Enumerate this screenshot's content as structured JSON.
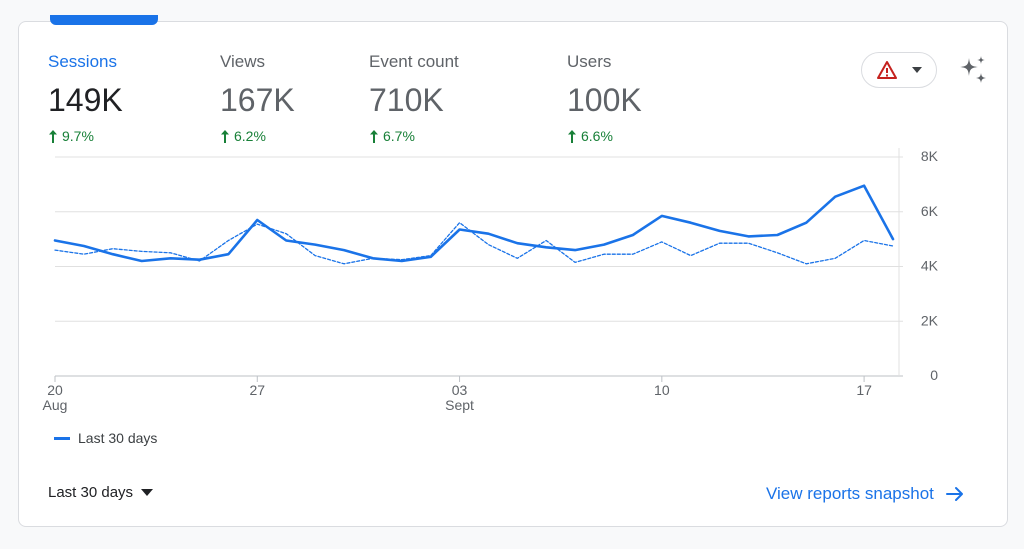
{
  "metrics": [
    {
      "label": "Sessions",
      "value": "149K",
      "change": "9.7%",
      "active": true
    },
    {
      "label": "Views",
      "value": "167K",
      "change": "6.2%",
      "active": false
    },
    {
      "label": "Event count",
      "value": "710K",
      "change": "6.7%",
      "active": false
    },
    {
      "label": "Users",
      "value": "100K",
      "change": "6.6%",
      "active": false
    }
  ],
  "alert_button": {
    "icon": "warning-triangle-icon",
    "dropdown_icon": "caret-down-icon"
  },
  "insights_icon": "sparkle-icon",
  "legend": {
    "label": "Last 30 days"
  },
  "date_range": {
    "label": "Last 30 days"
  },
  "view_reports": {
    "label": "View reports snapshot"
  },
  "colors": {
    "accent": "#1a73e8",
    "positive": "#188038",
    "warning": "#c5221f"
  },
  "chart_data": {
    "type": "line",
    "x": [
      "Aug 20",
      "Aug 21",
      "Aug 22",
      "Aug 23",
      "Aug 24",
      "Aug 25",
      "Aug 26",
      "Aug 27",
      "Aug 28",
      "Aug 29",
      "Aug 30",
      "Aug 31",
      "Sept 01",
      "Sept 02",
      "Sept 03",
      "Sept 04",
      "Sept 05",
      "Sept 06",
      "Sept 07",
      "Sept 08",
      "Sept 09",
      "Sept 10",
      "Sept 11",
      "Sept 12",
      "Sept 13",
      "Sept 14",
      "Sept 15",
      "Sept 16",
      "Sept 17",
      "Sept 18"
    ],
    "x_ticks": [
      {
        "index": 0,
        "label": "20",
        "sublabel": "Aug"
      },
      {
        "index": 7,
        "label": "27",
        "sublabel": ""
      },
      {
        "index": 14,
        "label": "03",
        "sublabel": "Sept"
      },
      {
        "index": 21,
        "label": "10",
        "sublabel": ""
      },
      {
        "index": 28,
        "label": "17",
        "sublabel": ""
      }
    ],
    "y_ticks": [
      {
        "value": 0,
        "label": "0"
      },
      {
        "value": 2000,
        "label": "2K"
      },
      {
        "value": 4000,
        "label": "4K"
      },
      {
        "value": 6000,
        "label": "6K"
      },
      {
        "value": 8000,
        "label": "8K"
      }
    ],
    "ylim": [
      0,
      8000
    ],
    "series": [
      {
        "name": "Last 30 days",
        "style": "solid",
        "values": [
          4950,
          4750,
          4450,
          4200,
          4300,
          4250,
          4450,
          5700,
          4950,
          4800,
          4600,
          4300,
          4200,
          4350,
          5350,
          5200,
          4850,
          4700,
          4600,
          4800,
          5150,
          5850,
          5600,
          5300,
          5100,
          5150,
          5600,
          6550,
          6950,
          5000
        ]
      },
      {
        "style": "dashed",
        "values": [
          4600,
          4450,
          4650,
          4550,
          4500,
          4200,
          4950,
          5550,
          5200,
          4400,
          4100,
          4300,
          4250,
          4400,
          5600,
          4800,
          4300,
          4950,
          4150,
          4450,
          4450,
          4900,
          4400,
          4850,
          4850,
          4500,
          4100,
          4300,
          4950,
          4750
        ]
      }
    ]
  }
}
